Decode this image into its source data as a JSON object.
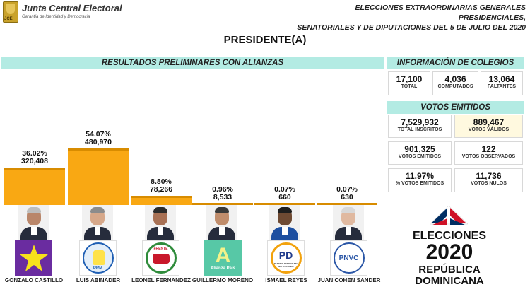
{
  "header": {
    "org_name": "Junta Central Electoral",
    "org_tagline": "Garantía de Identidad y Democracia",
    "logo_text": "JCE",
    "election_title_line1": "ELECCIONES EXTRAORDINARIAS GENERALES PRESIDENCIALES,",
    "election_title_line2": "SENATORIALES Y DE DIPUTACIONES DEL 5 DE JULIO DEL 2020"
  },
  "page_title": "PRESIDENTE(A)",
  "results_title": "RESULTADOS PRELIMINARES CON ALIANZAS",
  "candidates": [
    {
      "name": "GONZALO CASTILLO",
      "percent": "36.02%",
      "votes": "320,408",
      "party": "PLD",
      "share": 36.02
    },
    {
      "name": "LUIS ABINADER",
      "percent": "54.07%",
      "votes": "480,970",
      "party": "PRM",
      "share": 54.07
    },
    {
      "name": "LEONEL FERNANDEZ",
      "percent": "8.80%",
      "votes": "78,266",
      "party": "FP",
      "share": 8.8
    },
    {
      "name": "GUILLERMO MORENO",
      "percent": "0.96%",
      "votes": "8,533",
      "party": "Alianza País",
      "share": 0.96
    },
    {
      "name": "ISMAEL REYES",
      "percent": "0.07%",
      "votes": "660",
      "party": "PDI",
      "share": 0.07
    },
    {
      "name": "JUAN COHEN SANDER",
      "percent": "0.07%",
      "votes": "630",
      "party": "PNVC",
      "share": 0.07
    }
  ],
  "party_logos": {
    "prm_text": "PRM",
    "fp_text": "FRENTE",
    "ap_letter": "A",
    "ap_text": "Alianza País",
    "pdi_letter": "PD",
    "pdi_text": "PARTIDO DEMOCRATA INSTITUCIONAL",
    "pnvc_text": "PNVC"
  },
  "colegios": {
    "title": "INFORMACIÓN DE COLEGIOS",
    "total": {
      "value": "17,100",
      "label": "TOTAL"
    },
    "computados": {
      "value": "4,036",
      "label": "COMPUTADOS"
    },
    "faltantes": {
      "value": "13,064",
      "label": "FALTANTES"
    }
  },
  "votos": {
    "title": "VOTOS EMITIDOS",
    "inscritos": {
      "value": "7,529,932",
      "label": "TOTAL INSCRITOS"
    },
    "validos": {
      "value": "889,467",
      "label": "VOTOS VÁLIDOS"
    },
    "emitidos": {
      "value": "901,325",
      "label": "VOTOS EMITIDOS"
    },
    "observados": {
      "value": "122",
      "label": "VOTOS OBSERVADOS"
    },
    "pct_emitidos": {
      "value": "11.97%",
      "label": "% VOTOS EMITIDOS"
    },
    "nulos": {
      "value": "11,736",
      "label": "VOTOS NULOS"
    }
  },
  "branding": {
    "line1": "ELECCIONES",
    "line2": "2020",
    "line3": "REPÚBLICA",
    "line4": "DOMINICANA"
  },
  "colors": {
    "bar": "#f9a813",
    "section": "#b3ebe3",
    "flag_blue": "#002d62",
    "flag_red": "#ce1126"
  }
}
